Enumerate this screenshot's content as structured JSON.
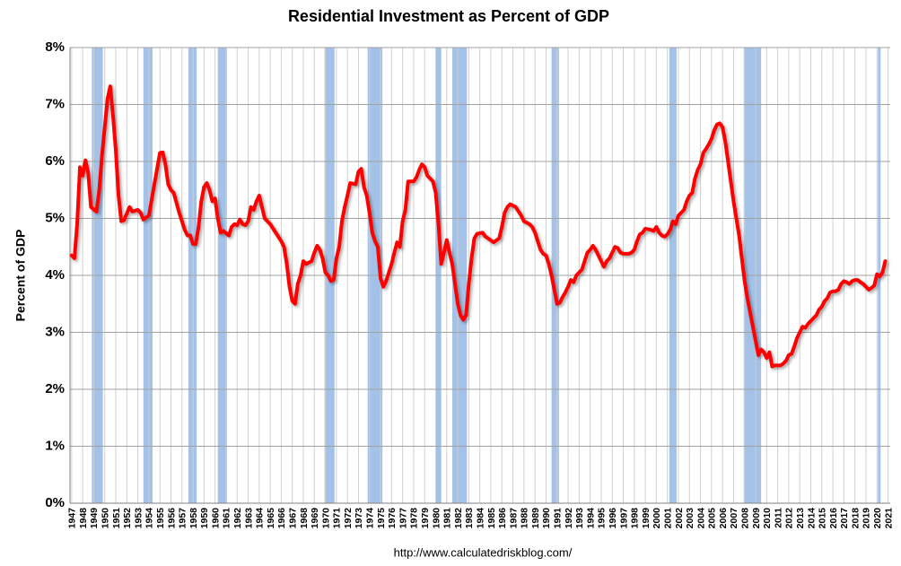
{
  "chart_data": {
    "type": "line",
    "title": "Residential Investment as Percent of GDP",
    "y_label": "Percent of GDP",
    "source": "http://www.calculatedriskblog.com/",
    "grid": true,
    "xlim": [
      1946.85,
      2021.2
    ],
    "ylim": [
      0,
      8
    ],
    "yticks": [
      {
        "value": 0,
        "label": "0%"
      },
      {
        "value": 1,
        "label": "1%"
      },
      {
        "value": 2,
        "label": "2%"
      },
      {
        "value": 3,
        "label": "3%"
      },
      {
        "value": 4,
        "label": "4%"
      },
      {
        "value": 5,
        "label": "5%"
      },
      {
        "value": 6,
        "label": "6%"
      },
      {
        "value": 7,
        "label": "7%"
      },
      {
        "value": 8,
        "label": "8%"
      }
    ],
    "xticks": [
      1947,
      1948,
      1949,
      1950,
      1951,
      1952,
      1953,
      1954,
      1955,
      1956,
      1957,
      1958,
      1959,
      1960,
      1961,
      1962,
      1963,
      1964,
      1965,
      1966,
      1967,
      1968,
      1969,
      1970,
      1971,
      1972,
      1973,
      1974,
      1975,
      1976,
      1977,
      1978,
      1979,
      1980,
      1981,
      1982,
      1983,
      1984,
      1985,
      1986,
      1987,
      1988,
      1989,
      1990,
      1991,
      1992,
      1993,
      1994,
      1995,
      1996,
      1997,
      1998,
      1999,
      2000,
      2001,
      2002,
      2003,
      2004,
      2005,
      2006,
      2007,
      2008,
      2009,
      2010,
      2011,
      2012,
      2013,
      2014,
      2015,
      2016,
      2017,
      2018,
      2019,
      2020,
      2021
    ],
    "recession_color": "#a4c2e8",
    "recessions": [
      [
        1948.83,
        1949.83
      ],
      [
        1953.5,
        1954.33
      ],
      [
        1957.58,
        1958.33
      ],
      [
        1960.25,
        1961.08
      ],
      [
        1969.92,
        1970.83
      ],
      [
        1973.83,
        1975.17
      ],
      [
        1980.0,
        1980.5
      ],
      [
        1981.5,
        1982.83
      ],
      [
        1990.5,
        1991.17
      ],
      [
        2001.17,
        2001.83
      ],
      [
        2007.92,
        2009.5
      ],
      [
        2020.08,
        2020.33
      ]
    ],
    "series": [
      {
        "color": "#ff0000",
        "x": [
          1947.0,
          1947.25,
          1947.5,
          1947.75,
          1948.0,
          1948.25,
          1948.5,
          1948.75,
          1949.25,
          1949.5,
          1949.75,
          1950.0,
          1950.25,
          1950.5,
          1950.75,
          1951.0,
          1951.25,
          1951.5,
          1951.75,
          1952.25,
          1952.5,
          1953.0,
          1953.25,
          1953.5,
          1954.0,
          1954.5,
          1955.0,
          1955.25,
          1955.5,
          1955.75,
          1956.0,
          1956.25,
          1956.75,
          1957.25,
          1957.5,
          1957.75,
          1958.0,
          1958.25,
          1958.5,
          1958.75,
          1959.0,
          1959.25,
          1959.5,
          1959.75,
          1960.0,
          1960.25,
          1960.5,
          1960.75,
          1961.25,
          1961.5,
          1961.75,
          1962.0,
          1962.25,
          1962.5,
          1962.75,
          1963.0,
          1963.25,
          1963.5,
          1963.75,
          1964.0,
          1964.25,
          1964.5,
          1965.0,
          1965.5,
          1966.0,
          1966.25,
          1966.5,
          1966.75,
          1967.0,
          1967.25,
          1967.5,
          1967.75,
          1968.0,
          1968.25,
          1968.75,
          1969.0,
          1969.25,
          1969.5,
          1969.75,
          1970.0,
          1970.25,
          1970.5,
          1970.75,
          1971.0,
          1971.25,
          1971.5,
          1971.75,
          1972.0,
          1972.25,
          1972.75,
          1973.0,
          1973.25,
          1973.5,
          1973.75,
          1974.0,
          1974.25,
          1974.5,
          1974.75,
          1975.0,
          1975.25,
          1975.5,
          1975.75,
          1976.0,
          1976.25,
          1976.5,
          1976.75,
          1977.0,
          1977.25,
          1977.5,
          1978.0,
          1978.25,
          1978.5,
          1978.75,
          1979.0,
          1979.25,
          1979.75,
          1980.0,
          1980.25,
          1980.5,
          1980.75,
          1981.0,
          1981.25,
          1981.5,
          1981.75,
          1982.0,
          1982.25,
          1982.5,
          1982.75,
          1983.0,
          1983.25,
          1983.5,
          1983.75,
          1984.25,
          1984.5,
          1984.75,
          1985.25,
          1985.75,
          1986.0,
          1986.25,
          1986.5,
          1986.75,
          1987.25,
          1987.75,
          1988.0,
          1988.5,
          1988.75,
          1989.0,
          1989.25,
          1989.5,
          1989.75,
          1990.0,
          1990.25,
          1990.5,
          1990.75,
          1991.0,
          1991.25,
          1991.5,
          1991.75,
          1992.0,
          1992.25,
          1992.5,
          1992.75,
          1993.25,
          1993.5,
          1993.75,
          1994.0,
          1994.25,
          1994.5,
          1994.75,
          1995.0,
          1995.25,
          1995.5,
          1995.75,
          1996.25,
          1996.5,
          1996.75,
          1997.0,
          1997.5,
          1997.75,
          1998.0,
          1998.25,
          1998.5,
          1998.75,
          1999.0,
          1999.5,
          1999.75,
          2000.0,
          2000.25,
          2000.5,
          2000.75,
          2001.0,
          2001.25,
          2001.5,
          2001.75,
          2002.0,
          2002.25,
          2002.5,
          2002.75,
          2003.0,
          2003.25,
          2003.5,
          2003.75,
          2004.0,
          2004.25,
          2004.5,
          2004.75,
          2005.0,
          2005.25,
          2005.5,
          2005.75,
          2006.0,
          2006.25,
          2006.5,
          2006.75,
          2007.0,
          2007.25,
          2007.5,
          2007.75,
          2008.0,
          2008.25,
          2008.5,
          2008.75,
          2009.0,
          2009.25,
          2009.5,
          2009.75,
          2010.0,
          2010.25,
          2010.5,
          2010.75,
          2011.25,
          2011.5,
          2011.75,
          2012.0,
          2012.25,
          2012.5,
          2012.75,
          2013.0,
          2013.25,
          2013.5,
          2013.75,
          2014.0,
          2014.25,
          2014.5,
          2014.75,
          2015.0,
          2015.25,
          2015.5,
          2015.75,
          2016.0,
          2016.25,
          2016.5,
          2016.75,
          2017.0,
          2017.25,
          2017.5,
          2017.75,
          2018.0,
          2018.25,
          2018.5,
          2018.75,
          2019.0,
          2019.25,
          2019.5,
          2019.75,
          2020.0,
          2020.25,
          2020.5,
          2020.75
        ],
        "values": [
          4.35,
          4.3,
          4.9,
          5.9,
          5.75,
          6.02,
          5.8,
          5.2,
          5.12,
          5.5,
          6.1,
          6.6,
          7.1,
          7.32,
          6.8,
          6.2,
          5.4,
          4.95,
          4.97,
          5.2,
          5.12,
          5.15,
          5.1,
          4.98,
          5.05,
          5.6,
          6.15,
          6.16,
          5.95,
          5.6,
          5.5,
          5.45,
          5.1,
          4.8,
          4.7,
          4.7,
          4.55,
          4.55,
          4.85,
          5.3,
          5.55,
          5.62,
          5.5,
          5.3,
          5.35,
          5.0,
          4.75,
          4.78,
          4.7,
          4.85,
          4.9,
          4.88,
          4.98,
          4.9,
          4.88,
          4.95,
          5.2,
          5.15,
          5.3,
          5.4,
          5.2,
          5.0,
          4.9,
          4.75,
          4.6,
          4.5,
          4.2,
          3.8,
          3.55,
          3.5,
          3.85,
          4.0,
          4.25,
          4.2,
          4.25,
          4.4,
          4.52,
          4.45,
          4.3,
          4.05,
          4.0,
          3.9,
          3.92,
          4.3,
          4.5,
          4.95,
          5.2,
          5.4,
          5.62,
          5.6,
          5.82,
          5.87,
          5.55,
          5.4,
          5.1,
          4.75,
          4.6,
          4.5,
          3.95,
          3.8,
          3.9,
          4.05,
          4.2,
          4.4,
          4.58,
          4.5,
          4.95,
          5.15,
          5.65,
          5.65,
          5.72,
          5.85,
          5.95,
          5.9,
          5.75,
          5.65,
          5.45,
          4.9,
          4.2,
          4.4,
          4.62,
          4.4,
          4.2,
          3.85,
          3.5,
          3.3,
          3.22,
          3.3,
          3.85,
          4.3,
          4.65,
          4.73,
          4.75,
          4.68,
          4.65,
          4.58,
          4.65,
          4.85,
          5.1,
          5.2,
          5.25,
          5.2,
          5.05,
          4.95,
          4.9,
          4.85,
          4.75,
          4.6,
          4.45,
          4.38,
          4.35,
          4.2,
          4.0,
          3.75,
          3.5,
          3.52,
          3.62,
          3.7,
          3.8,
          3.92,
          3.88,
          4.0,
          4.1,
          4.25,
          4.4,
          4.45,
          4.52,
          4.45,
          4.35,
          4.25,
          4.15,
          4.25,
          4.3,
          4.5,
          4.48,
          4.4,
          4.38,
          4.38,
          4.4,
          4.45,
          4.6,
          4.72,
          4.75,
          4.82,
          4.8,
          4.78,
          4.85,
          4.75,
          4.7,
          4.68,
          4.72,
          4.8,
          4.95,
          4.9,
          5.05,
          5.1,
          5.15,
          5.3,
          5.4,
          5.45,
          5.7,
          5.85,
          5.95,
          6.15,
          6.22,
          6.3,
          6.4,
          6.55,
          6.65,
          6.67,
          6.6,
          6.35,
          6.0,
          5.65,
          5.3,
          5.0,
          4.7,
          4.3,
          3.9,
          3.6,
          3.35,
          3.1,
          2.85,
          2.6,
          2.7,
          2.65,
          2.55,
          2.65,
          2.4,
          2.42,
          2.42,
          2.45,
          2.5,
          2.6,
          2.62,
          2.75,
          2.9,
          3.0,
          3.1,
          3.08,
          3.15,
          3.2,
          3.25,
          3.3,
          3.4,
          3.45,
          3.55,
          3.6,
          3.7,
          3.72,
          3.72,
          3.75,
          3.85,
          3.9,
          3.88,
          3.85,
          3.9,
          3.92,
          3.92,
          3.88,
          3.85,
          3.8,
          3.75,
          3.78,
          3.82,
          4.02,
          3.98,
          4.05,
          4.25
        ]
      }
    ]
  }
}
